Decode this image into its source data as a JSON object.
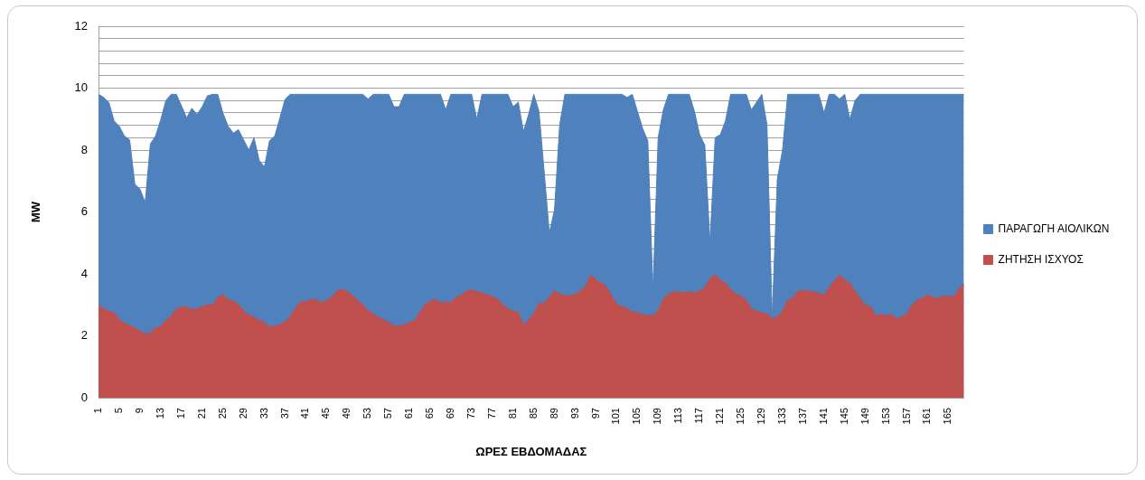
{
  "chart_data": {
    "type": "area",
    "xlabel": "ΩΡΕΣ ΕΒΔΟΜΑΔΑΣ",
    "ylabel": "MW",
    "categories": [
      "1",
      null,
      null,
      null,
      "5",
      null,
      null,
      null,
      "9",
      null,
      null,
      null,
      "13",
      null,
      null,
      null,
      "17",
      null,
      null,
      null,
      "21",
      null,
      null,
      null,
      "25",
      null,
      null,
      null,
      "29",
      null,
      null,
      null,
      "33",
      null,
      null,
      null,
      "37",
      null,
      null,
      null,
      "41",
      null,
      null,
      null,
      "45",
      null,
      null,
      null,
      "49",
      null,
      null,
      null,
      "53",
      null,
      null,
      null,
      "57",
      null,
      null,
      null,
      "61",
      null,
      null,
      null,
      "65",
      null,
      null,
      null,
      "69",
      null,
      null,
      null,
      "73",
      null,
      null,
      null,
      "77",
      null,
      null,
      null,
      "81",
      null,
      null,
      null,
      "85",
      null,
      null,
      null,
      "89",
      null,
      null,
      null,
      "93",
      null,
      null,
      null,
      "97",
      null,
      null,
      null,
      "101",
      null,
      null,
      null,
      "105",
      null,
      null,
      null,
      "109",
      null,
      null,
      null,
      "113",
      null,
      null,
      null,
      "117",
      null,
      null,
      null,
      "121",
      null,
      null,
      null,
      "125",
      null,
      null,
      null,
      "129",
      null,
      null,
      null,
      "133",
      null,
      null,
      null,
      "137",
      null,
      null,
      null,
      "141",
      null,
      null,
      null,
      "145",
      null,
      null,
      null,
      "149",
      null,
      null,
      null,
      "153",
      null,
      null,
      null,
      "157",
      null,
      null,
      null,
      "161",
      null,
      null,
      null,
      "165",
      null,
      null,
      null
    ],
    "series": [
      {
        "name": "ΠΑΡΑΓΩΓΗ ΑΙΟΛΙΚΩΝ",
        "color": "#4f81bd",
        "values": [
          9.8,
          9.7,
          9.53,
          8.94,
          8.77,
          8.45,
          8.33,
          6.9,
          6.74,
          6.3,
          8.2,
          8.45,
          8.98,
          9.6,
          9.8,
          9.8,
          9.43,
          9.04,
          9.35,
          9.15,
          9.4,
          9.75,
          9.8,
          9.8,
          9.2,
          8.77,
          8.55,
          8.66,
          8.33,
          8.0,
          8.4,
          7.67,
          7.45,
          8.3,
          8.45,
          9.04,
          9.64,
          9.8,
          9.8,
          9.8,
          9.8,
          9.8,
          9.8,
          9.8,
          9.8,
          9.8,
          9.8,
          9.8,
          9.8,
          9.8,
          9.8,
          9.8,
          9.65,
          9.8,
          9.8,
          9.8,
          9.8,
          9.4,
          9.4,
          9.8,
          9.8,
          9.8,
          9.8,
          9.8,
          9.8,
          9.8,
          9.8,
          9.3,
          9.8,
          9.8,
          9.8,
          9.8,
          9.8,
          9.0,
          9.8,
          9.8,
          9.8,
          9.8,
          9.8,
          9.8,
          9.4,
          9.55,
          8.6,
          9.15,
          9.8,
          9.25,
          7.3,
          5.32,
          6.08,
          8.82,
          9.8,
          9.8,
          9.8,
          9.8,
          9.8,
          9.8,
          9.8,
          9.8,
          9.8,
          9.8,
          9.8,
          9.8,
          9.7,
          9.8,
          9.25,
          8.7,
          8.3,
          3.45,
          8.4,
          9.3,
          9.8,
          9.8,
          9.8,
          9.8,
          9.8,
          9.25,
          8.5,
          8.16,
          5.0,
          8.4,
          8.5,
          8.95,
          9.8,
          9.8,
          9.8,
          9.8,
          9.3,
          9.55,
          9.8,
          8.82,
          2.57,
          7.07,
          8.0,
          9.8,
          9.8,
          9.8,
          9.8,
          9.8,
          9.8,
          9.8,
          9.2,
          9.8,
          9.8,
          9.65,
          9.8,
          9.0,
          9.6,
          9.8,
          9.8,
          9.8,
          9.8,
          9.8,
          9.8,
          9.8,
          9.8,
          9.8,
          9.8,
          9.8,
          9.8,
          9.8,
          9.8,
          9.8,
          9.8,
          9.8,
          9.8,
          9.8,
          9.8,
          9.8
        ]
      },
      {
        "name": "ΖΗΤΗΣΗ ΙΣΧΥΟΣ",
        "color": "#c0504d",
        "values": [
          3.01,
          2.86,
          2.8,
          2.75,
          2.52,
          2.41,
          2.33,
          2.25,
          2.16,
          2.05,
          2.1,
          2.25,
          2.3,
          2.5,
          2.63,
          2.86,
          2.94,
          2.92,
          2.86,
          2.86,
          2.94,
          3.0,
          3.01,
          3.23,
          3.34,
          3.18,
          3.12,
          3.01,
          2.8,
          2.68,
          2.6,
          2.5,
          2.45,
          2.28,
          2.33,
          2.35,
          2.46,
          2.63,
          2.9,
          3.1,
          3.1,
          3.18,
          3.18,
          3.07,
          3.15,
          3.25,
          3.45,
          3.5,
          3.43,
          3.3,
          3.15,
          3.01,
          2.8,
          2.72,
          2.6,
          2.52,
          2.45,
          2.3,
          2.33,
          2.35,
          2.43,
          2.5,
          2.75,
          3.0,
          3.12,
          3.18,
          3.07,
          3.1,
          3.07,
          3.25,
          3.3,
          3.45,
          3.48,
          3.43,
          3.38,
          3.33,
          3.25,
          3.2,
          3.0,
          2.88,
          2.8,
          2.75,
          2.35,
          2.52,
          2.72,
          3.05,
          3.05,
          3.25,
          3.45,
          3.35,
          3.3,
          3.3,
          3.34,
          3.45,
          3.6,
          3.98,
          3.8,
          3.7,
          3.6,
          3.3,
          3.02,
          2.95,
          2.88,
          2.78,
          2.74,
          2.68,
          2.66,
          2.66,
          2.8,
          3.2,
          3.35,
          3.43,
          3.4,
          3.4,
          3.42,
          3.4,
          3.45,
          3.55,
          3.85,
          3.98,
          3.8,
          3.7,
          3.5,
          3.35,
          3.28,
          3.15,
          2.88,
          2.8,
          2.75,
          2.7,
          2.57,
          2.6,
          2.8,
          3.15,
          3.23,
          3.45,
          3.45,
          3.45,
          3.42,
          3.38,
          3.32,
          3.55,
          3.78,
          3.97,
          3.8,
          3.7,
          3.45,
          3.2,
          3.0,
          2.94,
          2.65,
          2.7,
          2.65,
          2.7,
          2.55,
          2.62,
          2.7,
          3.0,
          3.15,
          3.23,
          3.32,
          3.25,
          3.2,
          3.29,
          3.27,
          3.27,
          3.5,
          3.67
        ]
      }
    ],
    "ylim": [
      0,
      12
    ],
    "yticks": [
      0,
      {
        "value": 0.4,
        "label": null
      },
      {
        "value": 0.8,
        "label": null
      },
      {
        "value": 1.2,
        "label": null
      },
      {
        "value": 1.6,
        "label": null
      },
      2,
      {
        "value": 2.4,
        "label": null
      },
      {
        "value": 2.8,
        "label": null
      },
      {
        "value": 3.2,
        "label": null
      },
      {
        "value": 3.6,
        "label": null
      },
      4,
      {
        "value": 4.4,
        "label": null
      },
      {
        "value": 4.8,
        "label": null
      },
      {
        "value": 5.2,
        "label": null
      },
      {
        "value": 5.6,
        "label": null
      },
      6,
      {
        "value": 6.4,
        "label": null
      },
      {
        "value": 6.8,
        "label": null
      },
      {
        "value": 7.2,
        "label": null
      },
      {
        "value": 7.6,
        "label": null
      },
      8,
      {
        "value": 8.4,
        "label": null
      },
      {
        "value": 8.8,
        "label": null
      },
      {
        "value": 9.2,
        "label": null
      },
      {
        "value": 9.6,
        "label": null
      },
      10,
      {
        "value": 10.4,
        "label": null
      },
      {
        "value": 10.8,
        "label": null
      },
      {
        "value": 11.2,
        "label": null
      },
      {
        "value": 11.6,
        "label": null
      },
      12
    ],
    "grid": "y",
    "legend": "right"
  }
}
